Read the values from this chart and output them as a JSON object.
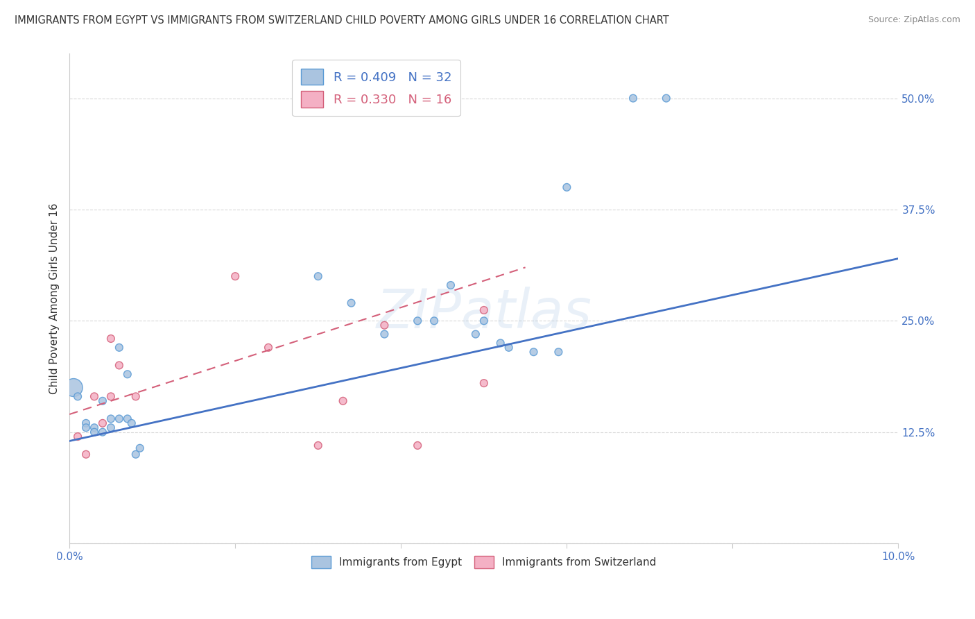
{
  "title": "IMMIGRANTS FROM EGYPT VS IMMIGRANTS FROM SWITZERLAND CHILD POVERTY AMONG GIRLS UNDER 16 CORRELATION CHART",
  "source": "Source: ZipAtlas.com",
  "ylabel": "Child Poverty Among Girls Under 16",
  "xlim": [
    0.0,
    0.1
  ],
  "ylim": [
    0.0,
    0.55
  ],
  "egypt_color": "#aac4e0",
  "egypt_edge_color": "#5b9bd5",
  "swiss_color": "#f4b0c4",
  "swiss_edge_color": "#d4607a",
  "egypt_R": 0.409,
  "egypt_N": 32,
  "swiss_R": 0.33,
  "swiss_N": 16,
  "egypt_line_color": "#4472c4",
  "swiss_line_color": "#d4607a",
  "grid_color": "#d8d8d8",
  "background_color": "#ffffff",
  "egypt_x": [
    0.0005,
    0.001,
    0.002,
    0.002,
    0.003,
    0.003,
    0.004,
    0.004,
    0.005,
    0.005,
    0.006,
    0.006,
    0.007,
    0.007,
    0.0075,
    0.008,
    0.0085,
    0.03,
    0.034,
    0.038,
    0.042,
    0.044,
    0.046,
    0.049,
    0.05,
    0.052,
    0.053,
    0.056,
    0.059,
    0.06,
    0.068,
    0.072
  ],
  "egypt_y": [
    0.175,
    0.165,
    0.135,
    0.13,
    0.13,
    0.125,
    0.125,
    0.16,
    0.14,
    0.13,
    0.22,
    0.14,
    0.19,
    0.14,
    0.135,
    0.1,
    0.107,
    0.3,
    0.27,
    0.235,
    0.25,
    0.25,
    0.29,
    0.235,
    0.25,
    0.225,
    0.22,
    0.215,
    0.215,
    0.4,
    0.5,
    0.5
  ],
  "egypt_sizes": [
    350,
    60,
    60,
    60,
    60,
    60,
    60,
    60,
    60,
    60,
    60,
    60,
    60,
    60,
    60,
    60,
    60,
    60,
    60,
    60,
    60,
    60,
    60,
    60,
    60,
    60,
    60,
    60,
    60,
    60,
    60,
    60
  ],
  "swiss_x": [
    0.001,
    0.002,
    0.003,
    0.004,
    0.005,
    0.005,
    0.006,
    0.008,
    0.02,
    0.024,
    0.03,
    0.033,
    0.038,
    0.042,
    0.05,
    0.05
  ],
  "swiss_y": [
    0.12,
    0.1,
    0.165,
    0.135,
    0.23,
    0.165,
    0.2,
    0.165,
    0.3,
    0.22,
    0.11,
    0.16,
    0.245,
    0.11,
    0.262,
    0.18
  ],
  "swiss_sizes": [
    60,
    60,
    60,
    60,
    60,
    60,
    60,
    60,
    60,
    60,
    60,
    60,
    60,
    60,
    60,
    60
  ],
  "egypt_line_x0": 0.0,
  "egypt_line_y0": 0.115,
  "egypt_line_x1": 0.1,
  "egypt_line_y1": 0.32,
  "swiss_line_x0": 0.0,
  "swiss_line_y0": 0.145,
  "swiss_line_x1": 0.055,
  "swiss_line_y1": 0.31
}
